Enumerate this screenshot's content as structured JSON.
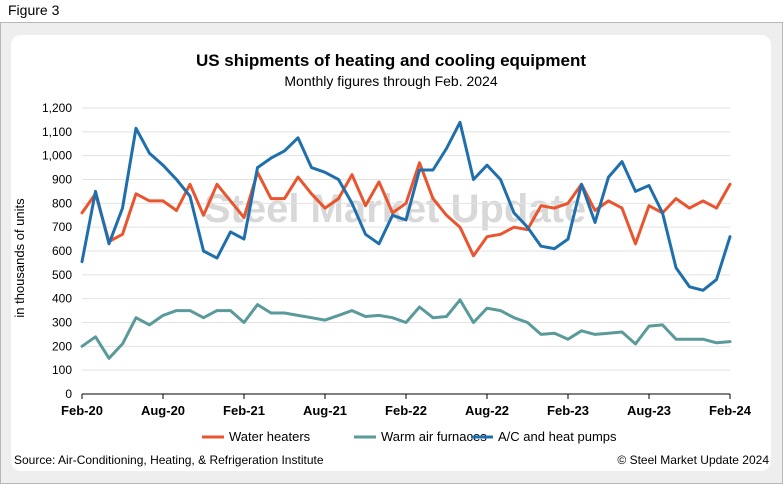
{
  "figure_label": "Figure 3",
  "watermark": "Steel Market Update",
  "source": "Source: Air-Conditioning, Heating, & Refrigeration Institute",
  "copyright": "© Steel Market Update 2024",
  "colors": {
    "water_heaters": "#e9552f",
    "warm_air_furnaces": "#5a9a9a",
    "ac_heat_pumps": "#1f6fad"
  },
  "chart_data": {
    "type": "line",
    "title": "US shipments of heating and cooling equipment",
    "subtitle": "Monthly figures through Feb. 2024",
    "ylabel": "in thousands of units",
    "xlabel": "",
    "ylim": [
      0,
      1200
    ],
    "yticks": [
      0,
      100,
      200,
      300,
      400,
      500,
      600,
      700,
      800,
      900,
      1000,
      1100,
      1200
    ],
    "ytick_labels": [
      "0",
      "100",
      "200",
      "300",
      "400",
      "500",
      "600",
      "700",
      "800",
      "900",
      "1,000",
      "1,100",
      "1,200"
    ],
    "xticks": [
      {
        "index": 0,
        "label": "Feb-20"
      },
      {
        "index": 6,
        "label": "Aug-20"
      },
      {
        "index": 12,
        "label": "Feb-21"
      },
      {
        "index": 18,
        "label": "Aug-21"
      },
      {
        "index": 24,
        "label": "Feb-22"
      },
      {
        "index": 30,
        "label": "Aug-22"
      },
      {
        "index": 36,
        "label": "Feb-23"
      },
      {
        "index": 42,
        "label": "Aug-23"
      },
      {
        "index": 48,
        "label": "Feb-24"
      }
    ],
    "x": [
      "Feb-20",
      "Mar-20",
      "Apr-20",
      "May-20",
      "Jun-20",
      "Jul-20",
      "Aug-20",
      "Sep-20",
      "Oct-20",
      "Nov-20",
      "Dec-20",
      "Jan-21",
      "Feb-21",
      "Mar-21",
      "Apr-21",
      "May-21",
      "Jun-21",
      "Jul-21",
      "Aug-21",
      "Sep-21",
      "Oct-21",
      "Nov-21",
      "Dec-21",
      "Jan-22",
      "Feb-22",
      "Mar-22",
      "Apr-22",
      "May-22",
      "Jun-22",
      "Jul-22",
      "Aug-22",
      "Sep-22",
      "Oct-22",
      "Nov-22",
      "Dec-22",
      "Jan-23",
      "Feb-23",
      "Mar-23",
      "Apr-23",
      "May-23",
      "Jun-23",
      "Jul-23",
      "Aug-23",
      "Sep-23",
      "Oct-23",
      "Nov-23",
      "Dec-23",
      "Jan-24",
      "Feb-24"
    ],
    "series": [
      {
        "name": "Water heaters",
        "key": "water_heaters",
        "values": [
          760,
          840,
          640,
          670,
          840,
          810,
          810,
          770,
          880,
          750,
          880,
          810,
          740,
          930,
          820,
          820,
          910,
          840,
          780,
          820,
          920,
          790,
          890,
          760,
          800,
          970,
          820,
          750,
          700,
          580,
          660,
          670,
          700,
          690,
          790,
          780,
          800,
          880,
          770,
          810,
          780,
          630,
          790,
          760,
          820,
          780,
          810,
          780,
          880
        ]
      },
      {
        "name": "Warm air furnaces",
        "key": "warm_air_furnaces",
        "values": [
          200,
          240,
          150,
          210,
          320,
          290,
          330,
          350,
          350,
          320,
          350,
          350,
          300,
          375,
          340,
          340,
          330,
          320,
          310,
          330,
          350,
          325,
          330,
          320,
          300,
          365,
          320,
          325,
          395,
          300,
          360,
          350,
          320,
          300,
          250,
          255,
          230,
          265,
          250,
          255,
          260,
          210,
          285,
          290,
          230,
          230,
          230,
          215,
          220
        ]
      },
      {
        "name": "A/C and heat pumps",
        "key": "ac_heat_pumps",
        "values": [
          555,
          850,
          630,
          780,
          1115,
          1010,
          960,
          900,
          830,
          600,
          570,
          680,
          650,
          950,
          990,
          1020,
          1075,
          950,
          930,
          900,
          800,
          670,
          630,
          750,
          730,
          940,
          940,
          1030,
          1140,
          900,
          960,
          900,
          760,
          700,
          620,
          610,
          650,
          880,
          720,
          910,
          975,
          850,
          875,
          760,
          530,
          450,
          435,
          480,
          660
        ]
      }
    ]
  }
}
